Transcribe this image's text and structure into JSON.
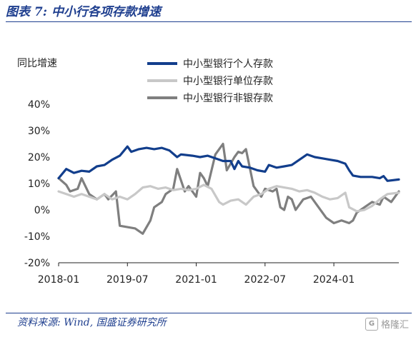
{
  "header": {
    "title": "图表 7:  中小行各项存款增速"
  },
  "footer": {
    "source": "资料来源:  Wind, 国盛证券研究所"
  },
  "watermark": {
    "text": "格隆汇",
    "icon": "gelonghui-logo-icon"
  },
  "chart_data": {
    "type": "line",
    "ylabel": "同比增速",
    "ylim": [
      -20,
      40
    ],
    "yticks": [
      -20,
      -10,
      0,
      10,
      20,
      30,
      40
    ],
    "ytick_labels": [
      "-20%",
      "-10%",
      "0%",
      "10%",
      "20%",
      "30%",
      "40%"
    ],
    "xlim": [
      "2018-01",
      "2025-06"
    ],
    "xticks": [
      "2018-01",
      "2019-07",
      "2021-01",
      "2022-07",
      "2024-01"
    ],
    "legend_position": "top-right",
    "grid": false,
    "series": [
      {
        "name": "中小型银行个人存款",
        "color": "#123e8c",
        "width": 3.2,
        "points": [
          [
            "2018-01",
            12
          ],
          [
            "2018-03",
            15.5
          ],
          [
            "2018-05",
            14
          ],
          [
            "2018-07",
            14.8
          ],
          [
            "2018-09",
            14.5
          ],
          [
            "2018-11",
            16.5
          ],
          [
            "2019-01",
            17
          ],
          [
            "2019-03",
            19
          ],
          [
            "2019-05",
            20.5
          ],
          [
            "2019-07",
            24
          ],
          [
            "2019-08",
            22
          ],
          [
            "2019-10",
            23
          ],
          [
            "2019-12",
            23.5
          ],
          [
            "2020-02",
            23
          ],
          [
            "2020-04",
            23.5
          ],
          [
            "2020-06",
            22.5
          ],
          [
            "2020-08",
            20
          ],
          [
            "2020-09",
            21
          ],
          [
            "2020-12",
            20.5
          ],
          [
            "2021-02",
            20
          ],
          [
            "2021-04",
            20.5
          ],
          [
            "2021-06",
            19.5
          ],
          [
            "2021-08",
            18.5
          ],
          [
            "2021-10",
            18.5
          ],
          [
            "2021-11",
            15.5
          ],
          [
            "2021-12",
            18.5
          ],
          [
            "2022-01",
            16.5
          ],
          [
            "2022-03",
            16
          ],
          [
            "2022-05",
            15
          ],
          [
            "2022-07",
            14.5
          ],
          [
            "2022-08",
            17
          ],
          [
            "2022-10",
            16
          ],
          [
            "2022-12",
            16.5
          ],
          [
            "2023-02",
            17
          ],
          [
            "2023-04",
            19
          ],
          [
            "2023-06",
            21
          ],
          [
            "2023-08",
            20
          ],
          [
            "2023-10",
            19.5
          ],
          [
            "2023-12",
            19
          ],
          [
            "2024-02",
            18.5
          ],
          [
            "2024-04",
            17.5
          ],
          [
            "2024-05",
            15
          ],
          [
            "2024-06",
            13
          ],
          [
            "2024-08",
            12.5
          ],
          [
            "2024-11",
            12.5
          ],
          [
            "2025-01",
            12
          ],
          [
            "2025-02",
            12.8
          ],
          [
            "2025-03",
            11
          ],
          [
            "2025-06",
            11.5
          ]
        ]
      },
      {
        "name": "中小型银行单位存款",
        "color": "#c8c8c8",
        "width": 3.2,
        "points": [
          [
            "2018-01",
            7
          ],
          [
            "2018-03",
            6
          ],
          [
            "2018-05",
            5
          ],
          [
            "2018-07",
            6
          ],
          [
            "2018-09",
            5
          ],
          [
            "2018-11",
            4
          ],
          [
            "2019-01",
            6
          ],
          [
            "2019-03",
            4
          ],
          [
            "2019-05",
            5
          ],
          [
            "2019-07",
            4
          ],
          [
            "2019-09",
            6
          ],
          [
            "2019-11",
            8.5
          ],
          [
            "2020-01",
            9
          ],
          [
            "2020-03",
            8
          ],
          [
            "2020-05",
            8.5
          ],
          [
            "2020-07",
            7.5
          ],
          [
            "2020-09",
            8
          ],
          [
            "2020-11",
            7.5
          ],
          [
            "2021-01",
            8
          ],
          [
            "2021-03",
            9.5
          ],
          [
            "2021-05",
            8
          ],
          [
            "2021-07",
            3
          ],
          [
            "2021-08",
            2
          ],
          [
            "2021-10",
            3.5
          ],
          [
            "2021-12",
            4
          ],
          [
            "2022-02",
            2
          ],
          [
            "2022-04",
            5
          ],
          [
            "2022-06",
            6
          ],
          [
            "2022-08",
            8
          ],
          [
            "2022-10",
            9
          ],
          [
            "2022-12",
            8.5
          ],
          [
            "2023-02",
            8
          ],
          [
            "2023-04",
            7
          ],
          [
            "2023-06",
            7.5
          ],
          [
            "2023-08",
            6.5
          ],
          [
            "2023-10",
            5
          ],
          [
            "2023-12",
            4
          ],
          [
            "2024-02",
            4.5
          ],
          [
            "2024-04",
            6.5
          ],
          [
            "2024-05",
            1
          ],
          [
            "2024-07",
            -0.5
          ],
          [
            "2024-09",
            0
          ],
          [
            "2024-11",
            1.5
          ],
          [
            "2025-01",
            4
          ],
          [
            "2025-03",
            6
          ],
          [
            "2025-06",
            6.5
          ]
        ]
      },
      {
        "name": "中小型银行非银存款",
        "color": "#7f7f7f",
        "width": 3.2,
        "points": [
          [
            "2018-01",
            12
          ],
          [
            "2018-03",
            9.5
          ],
          [
            "2018-04",
            7
          ],
          [
            "2018-06",
            8
          ],
          [
            "2018-07",
            12
          ],
          [
            "2018-09",
            6
          ],
          [
            "2018-11",
            4
          ],
          [
            "2019-01",
            6
          ],
          [
            "2019-02",
            4
          ],
          [
            "2019-04",
            7
          ],
          [
            "2019-05",
            -6
          ],
          [
            "2019-07",
            -6.5
          ],
          [
            "2019-09",
            -7
          ],
          [
            "2019-11",
            -9
          ],
          [
            "2020-01",
            -4
          ],
          [
            "2020-02",
            1
          ],
          [
            "2020-04",
            3
          ],
          [
            "2020-05",
            6
          ],
          [
            "2020-07",
            8
          ],
          [
            "2020-08",
            15.5
          ],
          [
            "2020-10",
            7
          ],
          [
            "2020-11",
            9
          ],
          [
            "2021-01",
            5
          ],
          [
            "2021-02",
            14
          ],
          [
            "2021-03",
            12
          ],
          [
            "2021-04",
            9
          ],
          [
            "2021-06",
            21
          ],
          [
            "2021-08",
            25
          ],
          [
            "2021-09",
            15
          ],
          [
            "2021-11",
            20
          ],
          [
            "2021-12",
            22
          ],
          [
            "2022-01",
            21.5
          ],
          [
            "2022-02",
            23
          ],
          [
            "2022-04",
            9
          ],
          [
            "2022-06",
            5
          ],
          [
            "2022-07",
            8
          ],
          [
            "2022-09",
            7
          ],
          [
            "2022-10",
            8
          ],
          [
            "2022-11",
            1
          ],
          [
            "2022-12",
            0
          ],
          [
            "2023-01",
            5
          ],
          [
            "2023-02",
            4
          ],
          [
            "2023-03",
            0
          ],
          [
            "2023-05",
            4
          ],
          [
            "2023-07",
            5
          ],
          [
            "2023-09",
            1
          ],
          [
            "2023-11",
            -3
          ],
          [
            "2024-01",
            -5
          ],
          [
            "2024-03",
            -4
          ],
          [
            "2024-05",
            -5
          ],
          [
            "2024-06",
            -4
          ],
          [
            "2024-07",
            -1
          ],
          [
            "2024-09",
            1
          ],
          [
            "2024-11",
            3
          ],
          [
            "2025-01",
            2
          ],
          [
            "2025-02",
            5
          ],
          [
            "2025-04",
            3
          ],
          [
            "2025-06",
            7
          ]
        ]
      }
    ]
  }
}
